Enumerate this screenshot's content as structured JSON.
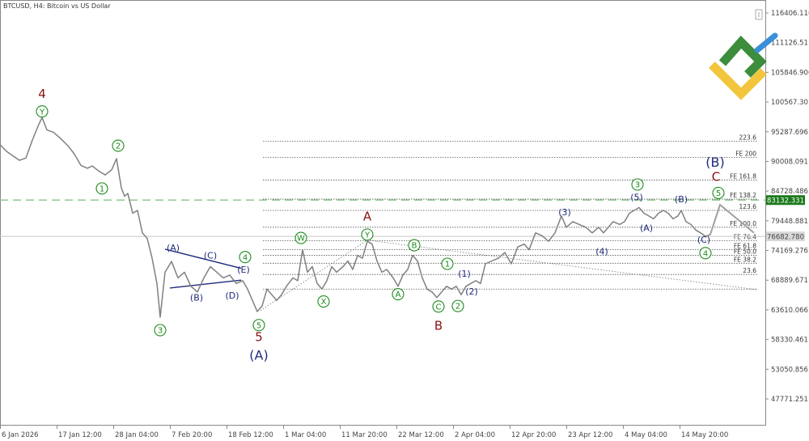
{
  "title": "BTCUSD, H4:  Bitcoin vs US Dollar",
  "chart_data": {
    "type": "line",
    "series": [
      {
        "values": [
          {
            "x": 0,
            "y": 93000
          },
          {
            "x": 8,
            "y": 91800
          },
          {
            "x": 16,
            "y": 91000
          },
          {
            "x": 24,
            "y": 90200
          },
          {
            "x": 32,
            "y": 90600
          },
          {
            "x": 40,
            "y": 93800
          },
          {
            "x": 48,
            "y": 96600
          },
          {
            "x": 52,
            "y": 97800
          },
          {
            "x": 58,
            "y": 95600
          },
          {
            "x": 66,
            "y": 95200
          },
          {
            "x": 74,
            "y": 94200
          },
          {
            "x": 84,
            "y": 92800
          },
          {
            "x": 92,
            "y": 91300
          },
          {
            "x": 100,
            "y": 89300
          },
          {
            "x": 108,
            "y": 88800
          },
          {
            "x": 114,
            "y": 89200
          },
          {
            "x": 122,
            "y": 88300
          },
          {
            "x": 130,
            "y": 87600
          },
          {
            "x": 138,
            "y": 88500
          },
          {
            "x": 144,
            "y": 90500
          },
          {
            "x": 150,
            "y": 85300
          },
          {
            "x": 154,
            "y": 83800
          },
          {
            "x": 158,
            "y": 84300
          },
          {
            "x": 164,
            "y": 80800
          },
          {
            "x": 170,
            "y": 81300
          },
          {
            "x": 176,
            "y": 77300
          },
          {
            "x": 182,
            "y": 76300
          },
          {
            "x": 188,
            "y": 72800
          },
          {
            "x": 194,
            "y": 68300
          },
          {
            "x": 198,
            "y": 62300
          },
          {
            "x": 204,
            "y": 70300
          },
          {
            "x": 212,
            "y": 72200
          },
          {
            "x": 220,
            "y": 69300
          },
          {
            "x": 228,
            "y": 70300
          },
          {
            "x": 236,
            "y": 67800
          },
          {
            "x": 244,
            "y": 66800
          },
          {
            "x": 252,
            "y": 69300
          },
          {
            "x": 260,
            "y": 71300
          },
          {
            "x": 268,
            "y": 70300
          },
          {
            "x": 276,
            "y": 69300
          },
          {
            "x": 284,
            "y": 69800
          },
          {
            "x": 292,
            "y": 68300
          },
          {
            "x": 300,
            "y": 68800
          },
          {
            "x": 306,
            "y": 67300
          },
          {
            "x": 312,
            "y": 65300
          },
          {
            "x": 318,
            "y": 63300
          },
          {
            "x": 324,
            "y": 64300
          },
          {
            "x": 330,
            "y": 67300
          },
          {
            "x": 336,
            "y": 66300
          },
          {
            "x": 342,
            "y": 65300
          },
          {
            "x": 348,
            "y": 66300
          },
          {
            "x": 354,
            "y": 67800
          },
          {
            "x": 362,
            "y": 69300
          },
          {
            "x": 368,
            "y": 68800
          },
          {
            "x": 374,
            "y": 74300
          },
          {
            "x": 380,
            "y": 70300
          },
          {
            "x": 386,
            "y": 71300
          },
          {
            "x": 392,
            "y": 68300
          },
          {
            "x": 398,
            "y": 67300
          },
          {
            "x": 404,
            "y": 68800
          },
          {
            "x": 410,
            "y": 71300
          },
          {
            "x": 416,
            "y": 70300
          },
          {
            "x": 424,
            "y": 71300
          },
          {
            "x": 430,
            "y": 72300
          },
          {
            "x": 436,
            "y": 70800
          },
          {
            "x": 442,
            "y": 73300
          },
          {
            "x": 448,
            "y": 72800
          },
          {
            "x": 454,
            "y": 75800
          },
          {
            "x": 460,
            "y": 75300
          },
          {
            "x": 466,
            "y": 72300
          },
          {
            "x": 472,
            "y": 70300
          },
          {
            "x": 478,
            "y": 70800
          },
          {
            "x": 486,
            "y": 69300
          },
          {
            "x": 492,
            "y": 67800
          },
          {
            "x": 498,
            "y": 69800
          },
          {
            "x": 504,
            "y": 70800
          },
          {
            "x": 510,
            "y": 73300
          },
          {
            "x": 516,
            "y": 72300
          },
          {
            "x": 522,
            "y": 69300
          },
          {
            "x": 528,
            "y": 67300
          },
          {
            "x": 534,
            "y": 66800
          },
          {
            "x": 540,
            "y": 65800
          },
          {
            "x": 546,
            "y": 66800
          },
          {
            "x": 552,
            "y": 67800
          },
          {
            "x": 558,
            "y": 67300
          },
          {
            "x": 564,
            "y": 67800
          },
          {
            "x": 570,
            "y": 66300
          },
          {
            "x": 576,
            "y": 67800
          },
          {
            "x": 582,
            "y": 68300
          },
          {
            "x": 588,
            "y": 68800
          },
          {
            "x": 594,
            "y": 68300
          },
          {
            "x": 600,
            "y": 71800
          },
          {
            "x": 608,
            "y": 72300
          },
          {
            "x": 616,
            "y": 72800
          },
          {
            "x": 624,
            "y": 73800
          },
          {
            "x": 632,
            "y": 71800
          },
          {
            "x": 640,
            "y": 74800
          },
          {
            "x": 648,
            "y": 75300
          },
          {
            "x": 654,
            "y": 74300
          },
          {
            "x": 662,
            "y": 77300
          },
          {
            "x": 670,
            "y": 76800
          },
          {
            "x": 678,
            "y": 75800
          },
          {
            "x": 686,
            "y": 77300
          },
          {
            "x": 694,
            "y": 80300
          },
          {
            "x": 700,
            "y": 78300
          },
          {
            "x": 708,
            "y": 79300
          },
          {
            "x": 716,
            "y": 78800
          },
          {
            "x": 724,
            "y": 78300
          },
          {
            "x": 732,
            "y": 77300
          },
          {
            "x": 740,
            "y": 78300
          },
          {
            "x": 746,
            "y": 77300
          },
          {
            "x": 752,
            "y": 78300
          },
          {
            "x": 758,
            "y": 79300
          },
          {
            "x": 766,
            "y": 78800
          },
          {
            "x": 772,
            "y": 79300
          },
          {
            "x": 778,
            "y": 80800
          },
          {
            "x": 784,
            "y": 81300
          },
          {
            "x": 790,
            "y": 81800
          },
          {
            "x": 796,
            "y": 80800
          },
          {
            "x": 802,
            "y": 80300
          },
          {
            "x": 808,
            "y": 79800
          },
          {
            "x": 814,
            "y": 80800
          },
          {
            "x": 820,
            "y": 81300
          },
          {
            "x": 826,
            "y": 80800
          },
          {
            "x": 832,
            "y": 79800
          },
          {
            "x": 838,
            "y": 80300
          },
          {
            "x": 842,
            "y": 81300
          },
          {
            "x": 848,
            "y": 79300
          },
          {
            "x": 854,
            "y": 78800
          },
          {
            "x": 860,
            "y": 77800
          },
          {
            "x": 866,
            "y": 77300
          },
          {
            "x": 872,
            "y": 76700
          },
          {
            "x": 878,
            "y": 77000
          }
        ]
      }
    ],
    "projection": [
      {
        "x": 878,
        "y": 77000
      },
      {
        "x": 890,
        "y": 82300
      },
      {
        "x": 932,
        "y": 77300
      }
    ],
    "xaxis": {
      "range": [
        0,
        940
      ],
      "ticks": [
        {
          "x": 0,
          "label": "6 Jan 2026"
        },
        {
          "x": 70,
          "label": "17 Jan 12:00"
        },
        {
          "x": 140,
          "label": "28 Jan 04:00"
        },
        {
          "x": 210,
          "label": "7 Feb 20:00"
        },
        {
          "x": 280,
          "label": "18 Feb 12:00"
        },
        {
          "x": 350,
          "label": "1 Mar 04:00"
        },
        {
          "x": 420,
          "label": "11 Mar 20:00"
        },
        {
          "x": 490,
          "label": "22 Mar 12:00"
        },
        {
          "x": 560,
          "label": "2 Apr 04:00"
        },
        {
          "x": 630,
          "label": "12 Apr 20:00"
        },
        {
          "x": 700,
          "label": "23 Apr 12:00"
        },
        {
          "x": 770,
          "label": "4 May 04:00"
        },
        {
          "x": 840,
          "label": "14 May 20:00"
        }
      ]
    },
    "yaxis": {
      "range": [
        43000,
        118000
      ],
      "ticks": [
        "116406.116",
        "111126.511",
        "105846.906",
        "100567.301",
        "95287.696",
        "90008.091",
        "84728.486",
        "79448.881",
        "74169.276",
        "68889.671",
        "63610.066",
        "58330.461",
        "53050.856",
        "47771.251"
      ]
    },
    "price_lines": {
      "current": {
        "value": "83132.331",
        "color": "#1b7a1b"
      },
      "bid": {
        "value": "76682.780",
        "color": "#9a9a9a"
      }
    },
    "fib_levels": [
      {
        "label": "223.6",
        "y": 93600
      },
      {
        "label": "FE 200",
        "y": 90700
      },
      {
        "label": "FE 161.8",
        "y": 86700
      },
      {
        "label": "FE 138.2",
        "y": 83300
      },
      {
        "label": "123.6",
        "y": 81300
      },
      {
        "label": "FE 100.0",
        "y": 78300
      },
      {
        "label": "FE 76.4",
        "y": 75900
      },
      {
        "label": "FE 61.8",
        "y": 74300
      },
      {
        "label": "FE 50.0",
        "y": 73300
      },
      {
        "label": "FE 38.2",
        "y": 71900
      },
      {
        "label": "23.6",
        "y": 69900
      },
      {
        "label": "",
        "y": 67300
      }
    ],
    "wave_labels": {
      "green_circled": [
        {
          "t": "Y",
          "x": 52,
          "y": 98900
        },
        {
          "t": "2",
          "x": 146,
          "y": 92800
        },
        {
          "t": "1",
          "x": 126,
          "y": 85200
        },
        {
          "t": "3",
          "x": 198,
          "y": 60000
        },
        {
          "t": "4",
          "x": 303,
          "y": 73000
        },
        {
          "t": "5",
          "x": 320,
          "y": 60900
        },
        {
          "t": "W",
          "x": 372,
          "y": 76400
        },
        {
          "t": "X",
          "x": 400,
          "y": 65100
        },
        {
          "t": "Y",
          "x": 454,
          "y": 77000
        },
        {
          "t": "A",
          "x": 492,
          "y": 66400
        },
        {
          "t": "B",
          "x": 512,
          "y": 75100
        },
        {
          "t": "C",
          "x": 542,
          "y": 64200
        },
        {
          "t": "1",
          "x": 553,
          "y": 71800
        },
        {
          "t": "2",
          "x": 566,
          "y": 64300
        },
        {
          "t": "3",
          "x": 788,
          "y": 85900
        },
        {
          "t": "4",
          "x": 872,
          "y": 73700
        },
        {
          "t": "5",
          "x": 888,
          "y": 84400
        }
      ],
      "navy": [
        {
          "t": "(A)",
          "x": 214,
          "y": 74700
        },
        {
          "t": "(C)",
          "x": 260,
          "y": 73300
        },
        {
          "t": "(E)",
          "x": 301,
          "y": 70800
        },
        {
          "t": "(B)",
          "x": 243,
          "y": 65800
        },
        {
          "t": "(D)",
          "x": 287,
          "y": 66200
        },
        {
          "t": "(1)",
          "x": 574,
          "y": 70100
        },
        {
          "t": "(2)",
          "x": 583,
          "y": 66900
        },
        {
          "t": "(3)",
          "x": 698,
          "y": 81000
        },
        {
          "t": "(4)",
          "x": 744,
          "y": 74000
        },
        {
          "t": "(5)",
          "x": 787,
          "y": 83700
        },
        {
          "t": "(A)",
          "x": 799,
          "y": 78200
        },
        {
          "t": "(B)",
          "x": 842,
          "y": 83300
        },
        {
          "t": "(C)",
          "x": 870,
          "y": 76100
        }
      ],
      "navy_big": [
        {
          "t": "(A)",
          "x": 320,
          "y": 55500
        },
        {
          "t": "(B)",
          "x": 884,
          "y": 89800
        }
      ],
      "red": [
        {
          "t": "4",
          "x": 52,
          "y": 102000
        },
        {
          "t": "5",
          "x": 320,
          "y": 58800
        },
        {
          "t": "A",
          "x": 454,
          "y": 80200
        },
        {
          "t": "B",
          "x": 542,
          "y": 60800
        },
        {
          "t": "C",
          "x": 885,
          "y": 87300
        }
      ]
    },
    "triangle_lines": [
      [
        {
          "x": 204,
          "y": 74400
        },
        {
          "x": 298,
          "y": 71000
        }
      ],
      [
        {
          "x": 210,
          "y": 67500
        },
        {
          "x": 298,
          "y": 68900
        }
      ]
    ],
    "dotted_trend": [
      [
        {
          "x": 322,
          "y": 63500
        },
        {
          "x": 454,
          "y": 76000
        }
      ],
      [
        {
          "x": 454,
          "y": 76000
        },
        {
          "x": 936,
          "y": 67200
        }
      ]
    ]
  },
  "colors": {
    "price": "#808080",
    "green": "#1b8a1b",
    "navy": "#1f2a7a",
    "red": "#8b1010",
    "logo_green": "#3c8d3c",
    "logo_yellow": "#f2c53d",
    "logo_blue": "#3a8fd8"
  },
  "icons": [
    "chart-settings-icon",
    "brand-logo-icon"
  ]
}
